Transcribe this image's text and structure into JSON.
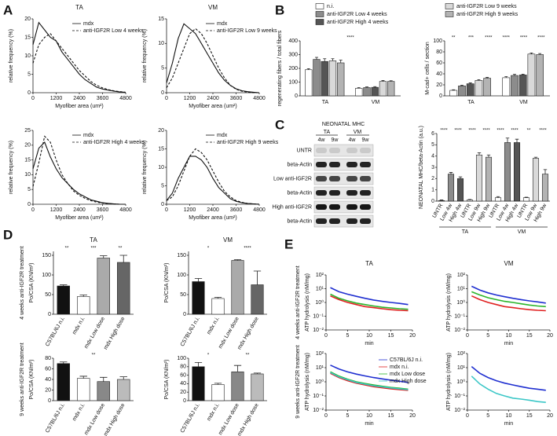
{
  "panels": [
    "A",
    "B",
    "C",
    "D",
    "E"
  ],
  "blot": {
    "title": "NEONATAL MHC",
    "groups": [
      "TA",
      "VM"
    ],
    "lanes": [
      "4w",
      "9w",
      "4w",
      "9w"
    ],
    "rows": [
      "UNTR",
      "beta-Actin",
      "Low anti-IGF2R",
      "beta-Actin",
      "High anti-IGF2R",
      "beta-Actin"
    ]
  },
  "chart_data": [
    {
      "type": "line",
      "title": "TA",
      "xlabel": "Myofiber area (um²)",
      "ylabel": "relative frequency (%)",
      "x": [
        0,
        300,
        600,
        900,
        1200,
        1500,
        1800,
        2100,
        2400,
        2700,
        3000,
        3300,
        3600,
        3900,
        4200,
        4500,
        4800
      ],
      "xlim": [
        0,
        4800
      ],
      "xticks": [
        0,
        1200,
        2400,
        3600,
        4800
      ],
      "ylim": [
        0,
        20
      ],
      "yticks": [
        0,
        5,
        10,
        15,
        20
      ],
      "series": [
        {
          "name": "mdx",
          "color": "#111111",
          "dash": false,
          "values": [
            13,
            19,
            17,
            15,
            14,
            11,
            9,
            7,
            5,
            3.5,
            2.5,
            1.5,
            1,
            0.7,
            0.4,
            0.2,
            0.1
          ]
        },
        {
          "name": "anti-IGF2R Low 4 weeks",
          "color": "#111111",
          "dash": true,
          "values": [
            8,
            13,
            15,
            16,
            14,
            12,
            10,
            8,
            6,
            4.5,
            3,
            2,
            1.3,
            0.8,
            0.5,
            0.3,
            0.1
          ]
        }
      ]
    },
    {
      "type": "line",
      "title": "VM",
      "xlabel": "Myofiber area (um²)",
      "ylabel": "relative frequency (%)",
      "x": [
        0,
        300,
        600,
        900,
        1200,
        1500,
        1800,
        2100,
        2400,
        2700,
        3000,
        3300,
        3600,
        3900,
        4200,
        4500,
        4800
      ],
      "xlim": [
        0,
        4800
      ],
      "xticks": [
        0,
        1200,
        2400,
        3600,
        4800
      ],
      "ylim": [
        0,
        15
      ],
      "yticks": [
        0,
        5,
        10,
        15
      ],
      "series": [
        {
          "name": "mdx",
          "color": "#111111",
          "dash": false,
          "values": [
            2,
            6,
            11,
            14,
            13,
            12,
            10,
            8,
            6,
            4,
            2.5,
            1.5,
            0.8,
            0.4,
            0.2,
            0.1,
            0
          ]
        },
        {
          "name": "anti-IGF2R Low 9 weeks",
          "color": "#111111",
          "dash": true,
          "values": [
            1,
            3,
            6,
            9,
            12,
            13,
            12,
            10,
            7.5,
            5,
            3,
            1.5,
            0.7,
            0.3,
            0.1,
            0,
            0
          ]
        }
      ]
    },
    {
      "type": "line",
      "xlabel": "Myofiber area (um²)",
      "ylabel": "relative frequency (%)",
      "x": [
        0,
        300,
        600,
        900,
        1200,
        1500,
        1800,
        2100,
        2400,
        2700,
        3000,
        3300,
        3600,
        3900,
        4200,
        4500,
        4800
      ],
      "xlim": [
        0,
        4800
      ],
      "xticks": [
        0,
        1200,
        2400,
        3600,
        4800
      ],
      "ylim": [
        0,
        25
      ],
      "yticks": [
        0,
        5,
        10,
        15,
        20,
        25
      ],
      "series": [
        {
          "name": "mdx",
          "color": "#111111",
          "dash": false,
          "values": [
            12,
            19,
            21,
            16,
            12,
            9,
            7,
            5,
            3.5,
            2.5,
            1.5,
            1,
            0.5,
            0.3,
            0.1,
            0,
            0
          ]
        },
        {
          "name": "anti-IGF2R High 4 weeks",
          "color": "#111111",
          "dash": true,
          "values": [
            6,
            14,
            23,
            21,
            15,
            10,
            7,
            4.5,
            3,
            2,
            1.2,
            0.7,
            0.4,
            0.2,
            0.1,
            0,
            0
          ]
        }
      ]
    },
    {
      "type": "line",
      "xlabel": "Myofiber area (um²)",
      "ylabel": "relative frequency (%)",
      "x": [
        0,
        300,
        600,
        900,
        1200,
        1500,
        1800,
        2100,
        2400,
        2700,
        3000,
        3300,
        3600,
        3900,
        4200,
        4500,
        4800
      ],
      "xlim": [
        0,
        4800
      ],
      "xticks": [
        0,
        1200,
        2400,
        3600,
        4800
      ],
      "ylim": [
        0,
        20
      ],
      "yticks": [
        0,
        5,
        10,
        15,
        20
      ],
      "series": [
        {
          "name": "mdx",
          "color": "#111111",
          "dash": false,
          "values": [
            1,
            3,
            7,
            10,
            13,
            13,
            12,
            10,
            7,
            4.5,
            3,
            1.5,
            0.8,
            0.4,
            0.2,
            0.1,
            0
          ]
        },
        {
          "name": "anti-IGF2R High 9 weeks",
          "color": "#111111",
          "dash": true,
          "values": [
            1,
            2,
            5,
            9,
            13,
            15,
            14,
            12,
            9,
            6,
            3.5,
            2,
            1,
            0.5,
            0.2,
            0.1,
            0
          ]
        }
      ]
    },
    {
      "type": "bar",
      "ylabel": "regenerating fibers / total fibers",
      "categories": [
        "TA",
        "VM"
      ],
      "ylim": [
        0,
        400
      ],
      "yticks": [
        0,
        100,
        200,
        300,
        400
      ],
      "series": [
        {
          "name": "n.i.",
          "color": "#ffffff",
          "values": [
            190,
            55
          ],
          "errors": [
            8,
            5
          ]
        },
        {
          "name": "anti-IGF2R Low 4 weeks",
          "color": "#8c8c8c",
          "values": [
            265,
            60
          ],
          "errors": [
            15,
            5
          ]
        },
        {
          "name": "anti-IGF2R High 4 weeks",
          "color": "#555555",
          "values": [
            250,
            62
          ],
          "errors": [
            20,
            5
          ]
        },
        {
          "name": "anti-IGF2R Low 9 weeks",
          "color": "#d9d9d9",
          "values": [
            255,
            105
          ],
          "errors": [
            15,
            6
          ]
        },
        {
          "name": "anti-IGF2R High 9 weeks",
          "color": "#b3b3b3",
          "values": [
            240,
            105
          ],
          "errors": [
            20,
            5
          ]
        }
      ],
      "annotations": [
        "****"
      ]
    },
    {
      "type": "bar",
      "ylabel": "M-cad+ cells / section",
      "categories": [
        "TA",
        "VM"
      ],
      "ylim": [
        0,
        100
      ],
      "yticks": [
        0,
        20,
        40,
        60,
        80,
        100
      ],
      "series": [
        {
          "color": "#ffffff",
          "values": [
            10,
            33
          ],
          "errors": [
            1,
            2
          ]
        },
        {
          "color": "#8c8c8c",
          "values": [
            18,
            37
          ],
          "errors": [
            1.5,
            2
          ]
        },
        {
          "color": "#555555",
          "values": [
            22,
            38
          ],
          "errors": [
            1.5,
            1.5
          ]
        },
        {
          "color": "#d9d9d9",
          "values": [
            28,
            76
          ],
          "errors": [
            1.5,
            2
          ]
        },
        {
          "color": "#b3b3b3",
          "values": [
            32,
            75
          ],
          "errors": [
            1.5,
            2
          ]
        }
      ],
      "annotations": [
        "**",
        "***",
        "****",
        "****",
        "****",
        "****"
      ]
    },
    {
      "type": "bar",
      "ylabel": "NEONATAL MHC/beta-Actin (a.u.)",
      "categories": [
        "UNTR",
        "Low 4w",
        "High 4w",
        "UNTR",
        "Low 9w",
        "High 9w",
        "UNTR",
        "Low 4w",
        "High 4w",
        "UNTR",
        "Low 9w",
        "High 9w"
      ],
      "groups": [
        "TA",
        "VM"
      ],
      "values": [
        0.05,
        2.4,
        2.0,
        0.1,
        4.1,
        3.9,
        0.3,
        5.2,
        5.2,
        0.3,
        3.8,
        2.4
      ],
      "errors": [
        0.05,
        0.15,
        0.15,
        0.05,
        0.2,
        0.2,
        0.1,
        0.4,
        0.3,
        0.05,
        0.1,
        0.4
      ],
      "colors": [
        "#ffffff",
        "#8c8c8c",
        "#555555",
        "#ffffff",
        "#d9d9d9",
        "#b3b3b3",
        "#ffffff",
        "#8c8c8c",
        "#555555",
        "#ffffff",
        "#d9d9d9",
        "#b3b3b3"
      ],
      "ylim": [
        0,
        6
      ],
      "yticks": [
        0,
        1,
        2,
        3,
        4,
        5,
        6
      ],
      "annotations": [
        "****",
        "****",
        "****",
        "****",
        "****",
        "****",
        "**",
        "****"
      ]
    },
    {
      "type": "bar",
      "title": "TA",
      "row_label": "4 weeks anti-IGF2R treatment",
      "ylabel": "Po/CSA (KN/m²)",
      "categories": [
        "C57BL/6J n.i.",
        "mdx n.i.",
        "mdx Low dose",
        "mdx High dose"
      ],
      "values": [
        72,
        45,
        143,
        132
      ],
      "errors": [
        3,
        4,
        6,
        18
      ],
      "colors": [
        "#111111",
        "#ffffff",
        "#aaaaaa",
        "#666666"
      ],
      "ylim": [
        0,
        160
      ],
      "yticks": [
        0,
        50,
        100,
        150
      ],
      "annotations": [
        "**",
        "***",
        "**"
      ]
    },
    {
      "type": "bar",
      "title": "VM",
      "ylabel": "Po/CSA (KN/m²)",
      "categories": [
        "C57BL/6J n.i.",
        "mdx n.i.",
        "mdx Low dose",
        "mdx High dose"
      ],
      "values": [
        83,
        40,
        137,
        75
      ],
      "errors": [
        8,
        3,
        2,
        35
      ],
      "colors": [
        "#111111",
        "#ffffff",
        "#aaaaaa",
        "#666666"
      ],
      "ylim": [
        0,
        160
      ],
      "yticks": [
        0,
        50,
        100,
        150
      ],
      "annotations": [
        "*",
        "****"
      ]
    },
    {
      "type": "bar",
      "row_label": "9 weeks anti-IGF2R treatment",
      "ylabel": "Po/CSA (KN/m²)",
      "categories": [
        "C57BL/6J n.i.",
        "mdx n.i.",
        "mdx Low dose",
        "mdx High dose"
      ],
      "values": [
        70,
        42,
        36,
        40
      ],
      "errors": [
        3,
        4,
        8,
        5
      ],
      "colors": [
        "#111111",
        "#ffffff",
        "#888888",
        "#bbbbbb"
      ],
      "ylim": [
        0,
        80
      ],
      "yticks": [
        0,
        20,
        40,
        60,
        80
      ],
      "annotations": [
        "**"
      ]
    },
    {
      "type": "bar",
      "ylabel": "Po/CSA (KN/m²)",
      "categories": [
        "C57BL/6J n.i.",
        "mdx n.i.",
        "mdx Low dose",
        "mdx High dose"
      ],
      "values": [
        80,
        38,
        68,
        63
      ],
      "errors": [
        10,
        3,
        15,
        2
      ],
      "colors": [
        "#111111",
        "#ffffff",
        "#888888",
        "#bbbbbb"
      ],
      "ylim": [
        0,
        100
      ],
      "yticks": [
        0,
        20,
        40,
        60,
        80,
        100
      ],
      "annotations": [
        "*",
        "**"
      ]
    },
    {
      "type": "line",
      "log": true,
      "title": "TA",
      "row_label": "4 weeks anti-IGF2R treatment",
      "ylabel": "ATP hydrolysis (nM/mg)",
      "xlabel": "min",
      "x": [
        1,
        3,
        5,
        7,
        9,
        11,
        13,
        15,
        17,
        19
      ],
      "xlim": [
        0,
        20
      ],
      "xticks": [
        0,
        5,
        10,
        15,
        20
      ],
      "ylim": [
        0.01,
        100
      ],
      "yticks": [
        {
          "value": 100,
          "label": "10²"
        },
        {
          "value": 10,
          "label": "10¹"
        },
        {
          "value": 1,
          "label": "10⁰"
        },
        {
          "value": 0.1,
          "label": "10⁻¹"
        },
        {
          "value": 0.01,
          "label": "10⁻²"
        }
      ],
      "series": [
        {
          "color": "#1f2fd0",
          "values": [
            12,
            6,
            4,
            2.8,
            2,
            1.5,
            1.2,
            1,
            0.85,
            0.7
          ]
        },
        {
          "color": "#e02020",
          "values": [
            3,
            1.6,
            1,
            0.7,
            0.5,
            0.42,
            0.35,
            0.3,
            0.27,
            0.25
          ]
        },
        {
          "color": "#2bb52b",
          "values": [
            4,
            2,
            1.3,
            0.9,
            0.7,
            0.55,
            0.45,
            0.4,
            0.35,
            0.32
          ]
        }
      ]
    },
    {
      "type": "line",
      "log": true,
      "title": "VM",
      "ylabel": "ATP hydrolysis (nM/mg)",
      "xlabel": "min",
      "x": [
        1,
        3,
        5,
        7,
        9,
        11,
        13,
        15,
        17,
        19
      ],
      "xlim": [
        0,
        20
      ],
      "xticks": [
        0,
        5,
        10,
        15,
        20
      ],
      "ylim": [
        0.01,
        100
      ],
      "yticks": [
        {
          "value": 100,
          "label": "10²"
        },
        {
          "value": 10,
          "label": "10¹"
        },
        {
          "value": 1,
          "label": "10⁰"
        },
        {
          "value": 0.1,
          "label": "10⁻¹"
        },
        {
          "value": 0.01,
          "label": "10⁻²"
        }
      ],
      "series": [
        {
          "color": "#1f2fd0",
          "values": [
            15,
            8,
            5,
            3.5,
            2.6,
            2,
            1.6,
            1.3,
            1.1,
            0.9
          ]
        },
        {
          "color": "#2bb52b",
          "values": [
            6,
            3.5,
            2.2,
            1.6,
            1.2,
            1,
            0.8,
            0.65,
            0.55,
            0.5
          ]
        },
        {
          "color": "#e02020",
          "values": [
            3,
            1.6,
            1,
            0.7,
            0.5,
            0.42,
            0.35,
            0.3,
            0.27,
            0.25
          ]
        }
      ]
    },
    {
      "type": "line",
      "log": true,
      "row_label": "9 weeks anti-IGF2R treatment",
      "ylabel": "ATP hydrolysis (nM/mg)",
      "xlabel": "min",
      "x": [
        1,
        3,
        5,
        7,
        9,
        11,
        13,
        15,
        17,
        19
      ],
      "xlim": [
        0,
        20
      ],
      "xticks": [
        0,
        5,
        10,
        15,
        20
      ],
      "ylim": [
        0.01,
        100
      ],
      "yticks": [
        {
          "value": 100,
          "label": "10²"
        },
        {
          "value": 10,
          "label": "10¹"
        },
        {
          "value": 1,
          "label": "10⁰"
        },
        {
          "value": 0.1,
          "label": "10⁻¹"
        },
        {
          "value": 0.01,
          "label": "10⁻²"
        }
      ],
      "series": [
        {
          "name": "C57BL/6J n.i.",
          "color": "#1f2fd0",
          "values": [
            15,
            8,
            5,
            3.5,
            2.6,
            2,
            1.6,
            1.3,
            1.1,
            0.9
          ]
        },
        {
          "name": "mdx n.i.",
          "color": "#e02020",
          "values": [
            4,
            2,
            1.2,
            0.8,
            0.6,
            0.45,
            0.38,
            0.32,
            0.28,
            0.25
          ]
        },
        {
          "name": "mdx Low dose",
          "color": "#2bb52b",
          "values": [
            5,
            2.5,
            1.5,
            1,
            0.75,
            0.6,
            0.48,
            0.4,
            0.35,
            0.3
          ]
        },
        {
          "name": "mdx High dose",
          "color": "#3cc7c7",
          "values": [
            4.5,
            2.2,
            1.4,
            0.9,
            0.68,
            0.52,
            0.44,
            0.37,
            0.32,
            0.28
          ]
        }
      ]
    },
    {
      "type": "line",
      "log": true,
      "ylabel": "ATP hydrolysis (nM/mg)",
      "xlabel": "min",
      "x": [
        1,
        3,
        5,
        7,
        9,
        11,
        13,
        15,
        17,
        19
      ],
      "xlim": [
        0,
        20
      ],
      "xticks": [
        0,
        5,
        10,
        15,
        20
      ],
      "ylim": [
        0.01,
        100
      ],
      "yticks": [
        {
          "value": 100,
          "label": "10²"
        },
        {
          "value": 10,
          "label": "10¹"
        },
        {
          "value": 1,
          "label": "10⁰"
        },
        {
          "value": 0.1,
          "label": "10⁻¹"
        },
        {
          "value": 0.01,
          "label": "10⁻²"
        }
      ],
      "series": [
        {
          "color": "#1f2fd0",
          "values": [
            12,
            4,
            2,
            1.2,
            0.8,
            0.6,
            0.45,
            0.35,
            0.3,
            0.25
          ]
        },
        {
          "color": "#3cc7c7",
          "values": [
            2.5,
            0.7,
            0.3,
            0.15,
            0.1,
            0.07,
            0.06,
            0.05,
            0.04,
            0.035
          ]
        }
      ]
    }
  ]
}
